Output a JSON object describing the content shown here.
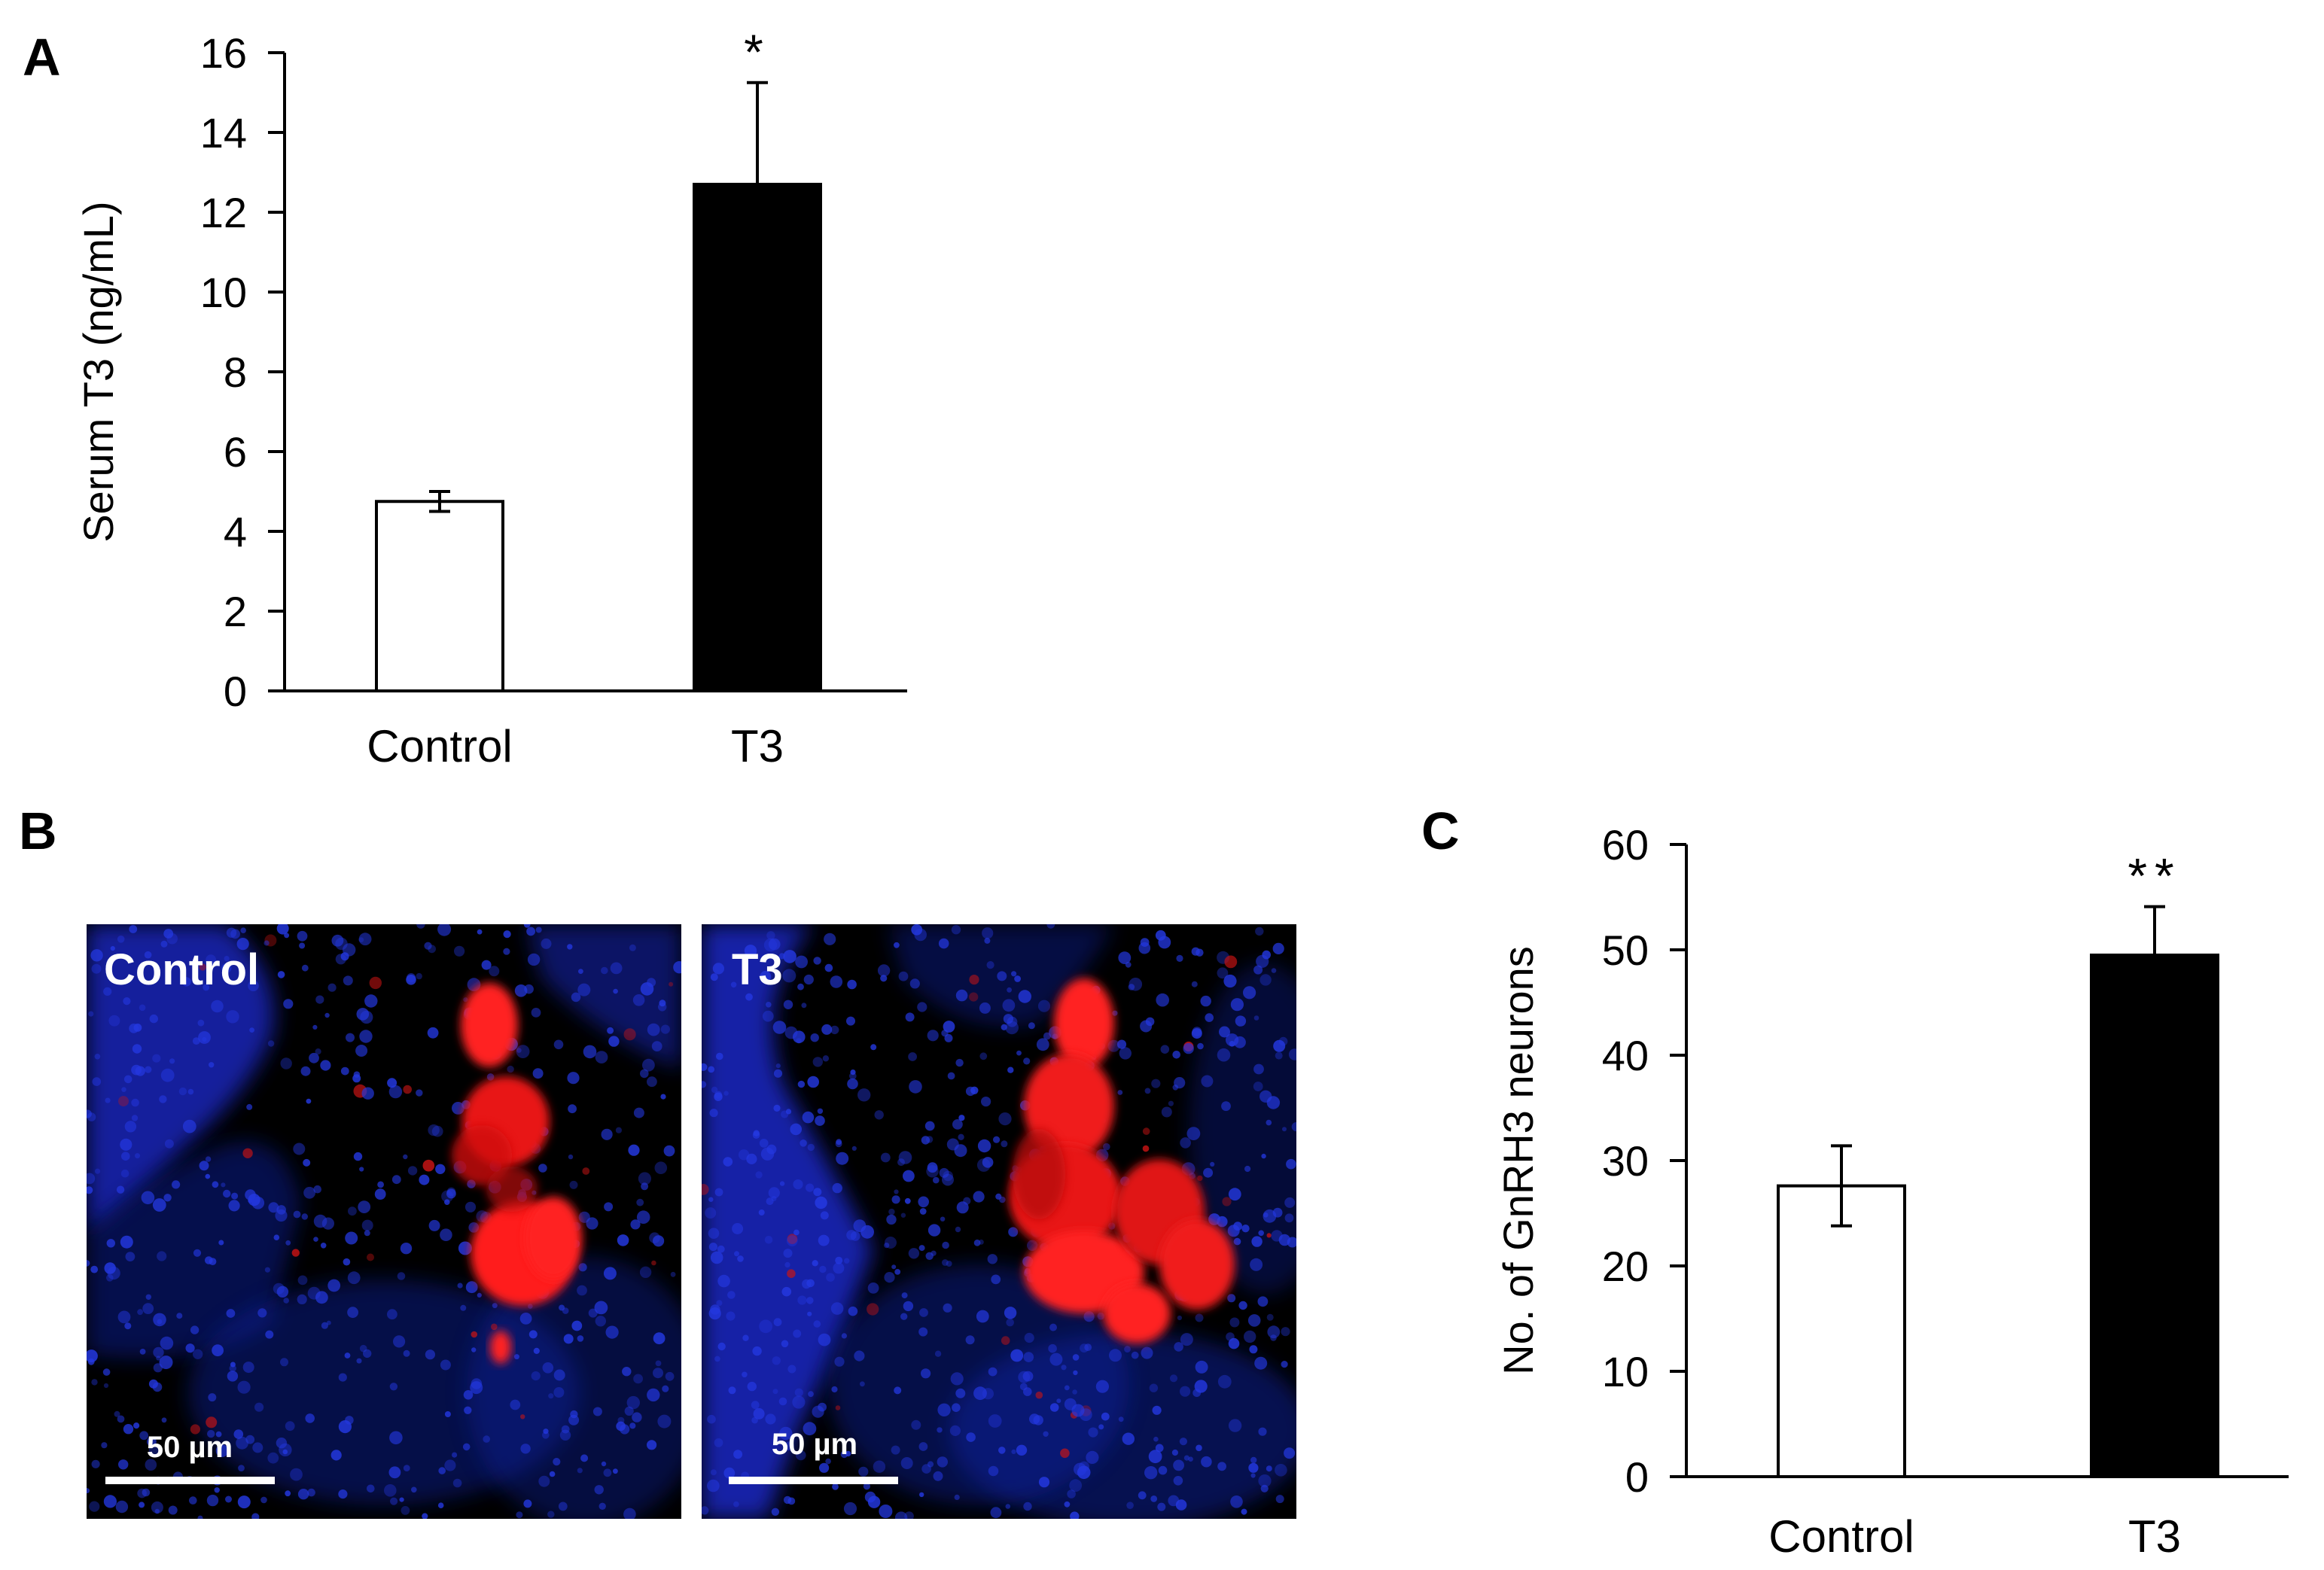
{
  "panels": {
    "a": {
      "letter": "A"
    },
    "b": {
      "letter": "B"
    },
    "c": {
      "letter": "C"
    }
  },
  "micrographs": [
    {
      "label": "Control",
      "scale_bar": "50 µm"
    },
    {
      "label": "T3",
      "scale_bar": "50 µm"
    }
  ],
  "colors": {
    "control_fill": "#ffffff",
    "t3_fill": "#000000",
    "nuclei_stain": "#1a2fd8",
    "gnrh3_stain": "#ff1a1a",
    "micrograph_background": "#000000"
  },
  "chart_data": [
    {
      "type": "bar",
      "categories": [
        "Control",
        "T3"
      ],
      "values": [
        4.75,
        12.7
      ],
      "error": [
        0.25,
        2.55
      ],
      "significance": [
        "",
        "*"
      ],
      "ylabel": "Serum T3 (ng/mL)",
      "ylim": [
        0,
        16
      ],
      "yticks": [
        0,
        2,
        4,
        6,
        8,
        10,
        12,
        14,
        16
      ],
      "grid": false,
      "legend": "none"
    },
    {
      "type": "bar",
      "categories": [
        "Control",
        "T3"
      ],
      "values": [
        27.6,
        49.5
      ],
      "error": [
        3.8,
        4.6
      ],
      "significance": [
        "",
        "**"
      ],
      "ylabel": "No. of GnRH3 neurons",
      "ylim": [
        0,
        60
      ],
      "yticks": [
        0,
        10,
        20,
        30,
        40,
        50,
        60
      ],
      "grid": false,
      "legend": "none"
    }
  ]
}
